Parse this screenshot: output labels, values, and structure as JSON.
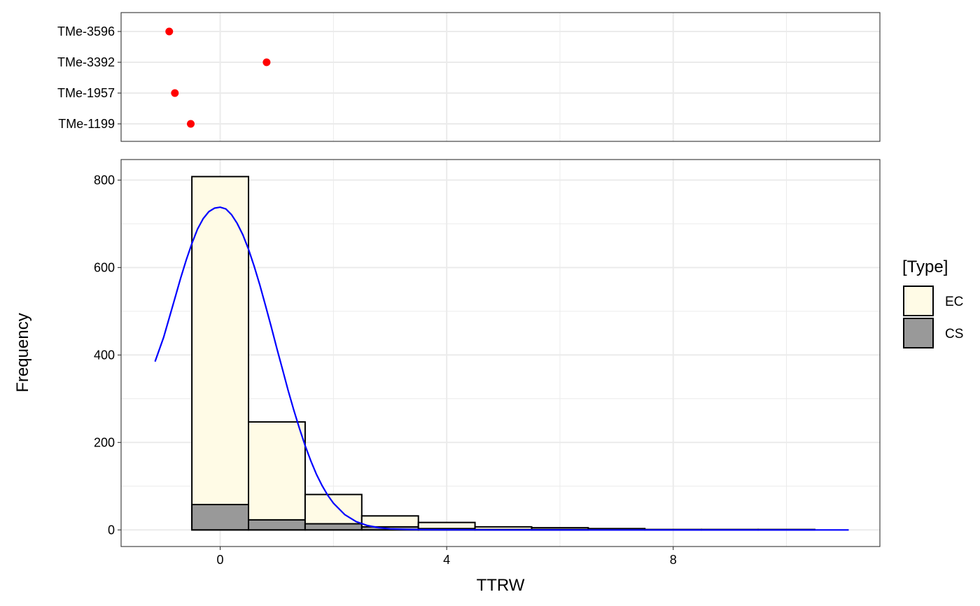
{
  "chart_data": [
    {
      "type": "scatter",
      "categories": [
        "TMe-3596",
        "TMe-3392",
        "TMe-1957",
        "TMe-1199"
      ],
      "values": [
        -0.9,
        0.82,
        -0.8,
        -0.52
      ],
      "xlim": [
        -1.75,
        11.65
      ],
      "grid": true,
      "point_color": "#ff0000"
    },
    {
      "type": "bar",
      "title": "",
      "xlabel": "TTRW",
      "ylabel": "Frequency",
      "x_ticks": [
        "0",
        "4",
        "8"
      ],
      "x_tick_values": [
        0,
        4,
        8
      ],
      "y_ticks": [
        "0",
        "200",
        "400",
        "600",
        "800"
      ],
      "y_tick_values": [
        0,
        200,
        400,
        600,
        800
      ],
      "xlim": [
        -1.75,
        11.65
      ],
      "ylim": [
        -38,
        847
      ],
      "bin_width": 1,
      "bin_centers": [
        0,
        1,
        2,
        3,
        4,
        5,
        6,
        7,
        8,
        9,
        10
      ],
      "series": [
        {
          "name": "EC",
          "color": "#fffbe6",
          "values": [
            808,
            247,
            81,
            32,
            17,
            7,
            5,
            3,
            1,
            1,
            1
          ]
        },
        {
          "name": "CS",
          "color": "#999999",
          "values": [
            58,
            23,
            14,
            7,
            3,
            1,
            1,
            0,
            0,
            0,
            0
          ]
        }
      ],
      "density_curve": {
        "color": "#0000ff",
        "x": [
          -1.15,
          -1.0,
          -0.9,
          -0.8,
          -0.7,
          -0.6,
          -0.5,
          -0.4,
          -0.3,
          -0.2,
          -0.1,
          0.0,
          0.1,
          0.2,
          0.3,
          0.4,
          0.5,
          0.6,
          0.7,
          0.8,
          0.9,
          1.0,
          1.1,
          1.2,
          1.3,
          1.4,
          1.5,
          1.6,
          1.7,
          1.8,
          1.9,
          2.0,
          2.2,
          2.4,
          2.6,
          2.8,
          3.0,
          3.3,
          3.6,
          4.0,
          4.5,
          5.0,
          6.0,
          7.0,
          8.0,
          9.0,
          10.0,
          11.1
        ],
        "y": [
          385,
          440,
          485,
          530,
          575,
          617,
          655,
          688,
          712,
          728,
          736,
          738,
          734,
          721,
          701,
          675,
          642,
          603,
          560,
          513,
          465,
          415,
          367,
          319,
          274,
          232,
          193,
          158,
          127,
          101,
          79,
          61,
          35,
          19,
          10,
          5,
          2.4,
          1,
          0.4,
          0.2,
          0.1,
          0,
          0,
          0,
          0,
          0,
          0,
          0
        ]
      },
      "legend": {
        "title": "[Type]",
        "position": "right",
        "entries": [
          "EC",
          "CS"
        ]
      }
    }
  ]
}
